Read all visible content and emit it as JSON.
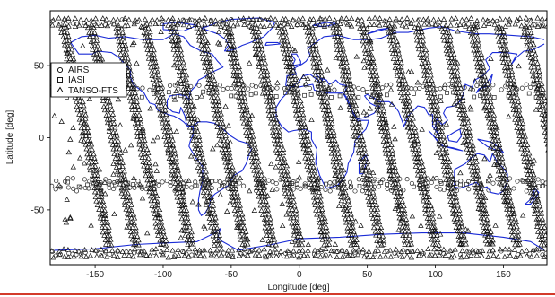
{
  "chart_data": {
    "type": "scatter",
    "title": "",
    "xlabel": "Longitude [deg]",
    "ylabel": "Latitude [deg]",
    "xlim": [
      -183,
      182
    ],
    "ylim": [
      -88,
      88
    ],
    "x_ticks": [
      -150,
      -100,
      -50,
      0,
      50,
      100,
      150
    ],
    "y_ticks": [
      -50,
      0,
      50
    ],
    "x_tick_labels": [
      "-150",
      "-100",
      "-50",
      "0",
      "50",
      "100",
      "150"
    ],
    "y_tick_labels": [
      "-50",
      "0",
      "50"
    ],
    "grid": false,
    "legend": {
      "position": "top-left",
      "entries": [
        "AIRS",
        "IASI",
        "TANSO-FTS"
      ]
    },
    "series": [
      {
        "name": "AIRS",
        "marker": "circle",
        "color": "#111111",
        "description_bands_lat": [
          35,
          -30,
          -35,
          80,
          -80
        ]
      },
      {
        "name": "IASI",
        "marker": "square",
        "color": "#111111",
        "description_bands_lat": [
          30,
          -32
        ]
      },
      {
        "name": "TANSO-FTS",
        "marker": "triangle",
        "color": "#111111",
        "tracks_count": 18,
        "polar_band_lats": [
          82,
          78,
          -78,
          -82
        ]
      }
    ],
    "coastline_color": "#1a2bd6"
  }
}
